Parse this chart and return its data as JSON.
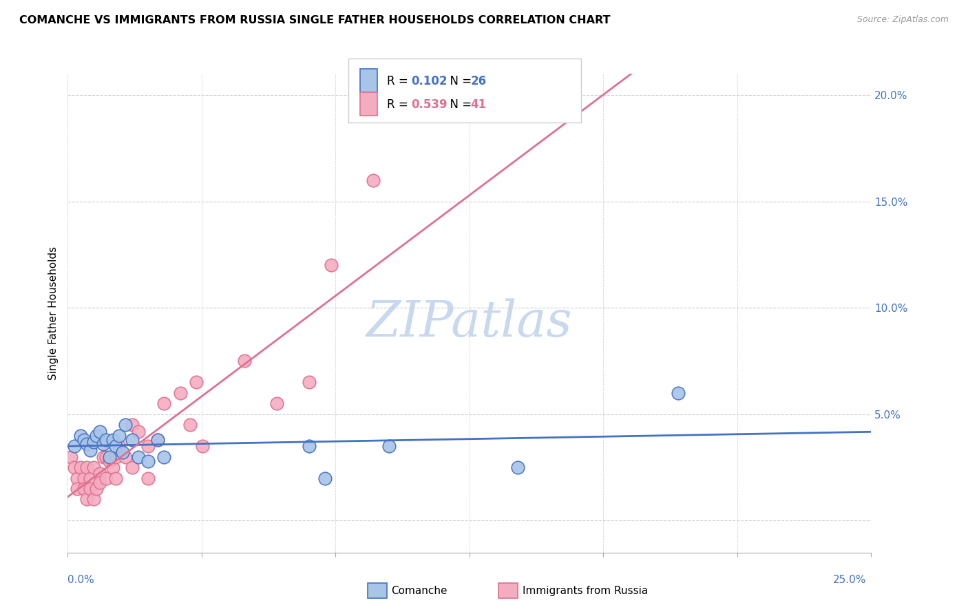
{
  "title": "COMANCHE VS IMMIGRANTS FROM RUSSIA SINGLE FATHER HOUSEHOLDS CORRELATION CHART",
  "source": "Source: ZipAtlas.com",
  "ylabel": "Single Father Households",
  "xlim": [
    0,
    0.25
  ],
  "ylim": [
    -0.015,
    0.21
  ],
  "comanche_R": 0.102,
  "comanche_N": 26,
  "russia_R": 0.539,
  "russia_N": 41,
  "comanche_color": "#a8c4e8",
  "russia_color": "#f4adc0",
  "comanche_edge_color": "#4472c4",
  "russia_edge_color": "#e07090",
  "comanche_line_color": "#4472c4",
  "russia_line_color": "#e07090",
  "watermark_color": "#c8d8ee",
  "ytick_color": "#4472c4",
  "xtick_color": "#4472c4",
  "grid_color": "#cccccc",
  "comanche_x": [
    0.002,
    0.004,
    0.005,
    0.006,
    0.007,
    0.008,
    0.009,
    0.01,
    0.011,
    0.012,
    0.013,
    0.014,
    0.015,
    0.016,
    0.017,
    0.018,
    0.02,
    0.022,
    0.025,
    0.028,
    0.03,
    0.075,
    0.08,
    0.1,
    0.14,
    0.19
  ],
  "comanche_y": [
    0.035,
    0.04,
    0.038,
    0.036,
    0.033,
    0.037,
    0.04,
    0.042,
    0.036,
    0.038,
    0.03,
    0.038,
    0.035,
    0.04,
    0.032,
    0.045,
    0.038,
    0.03,
    0.028,
    0.038,
    0.03,
    0.035,
    0.02,
    0.035,
    0.025,
    0.06
  ],
  "russia_x": [
    0.001,
    0.002,
    0.003,
    0.003,
    0.004,
    0.005,
    0.005,
    0.006,
    0.006,
    0.007,
    0.007,
    0.008,
    0.008,
    0.009,
    0.01,
    0.01,
    0.011,
    0.012,
    0.012,
    0.013,
    0.014,
    0.015,
    0.015,
    0.016,
    0.018,
    0.02,
    0.02,
    0.022,
    0.025,
    0.025,
    0.028,
    0.03,
    0.035,
    0.038,
    0.04,
    0.042,
    0.055,
    0.065,
    0.075,
    0.082,
    0.095
  ],
  "russia_y": [
    0.03,
    0.025,
    0.02,
    0.015,
    0.025,
    0.02,
    0.015,
    0.025,
    0.01,
    0.02,
    0.015,
    0.025,
    0.01,
    0.015,
    0.022,
    0.018,
    0.03,
    0.03,
    0.02,
    0.028,
    0.025,
    0.03,
    0.02,
    0.035,
    0.03,
    0.045,
    0.025,
    0.042,
    0.035,
    0.02,
    0.038,
    0.055,
    0.06,
    0.045,
    0.065,
    0.035,
    0.075,
    0.055,
    0.065,
    0.12,
    0.16
  ]
}
